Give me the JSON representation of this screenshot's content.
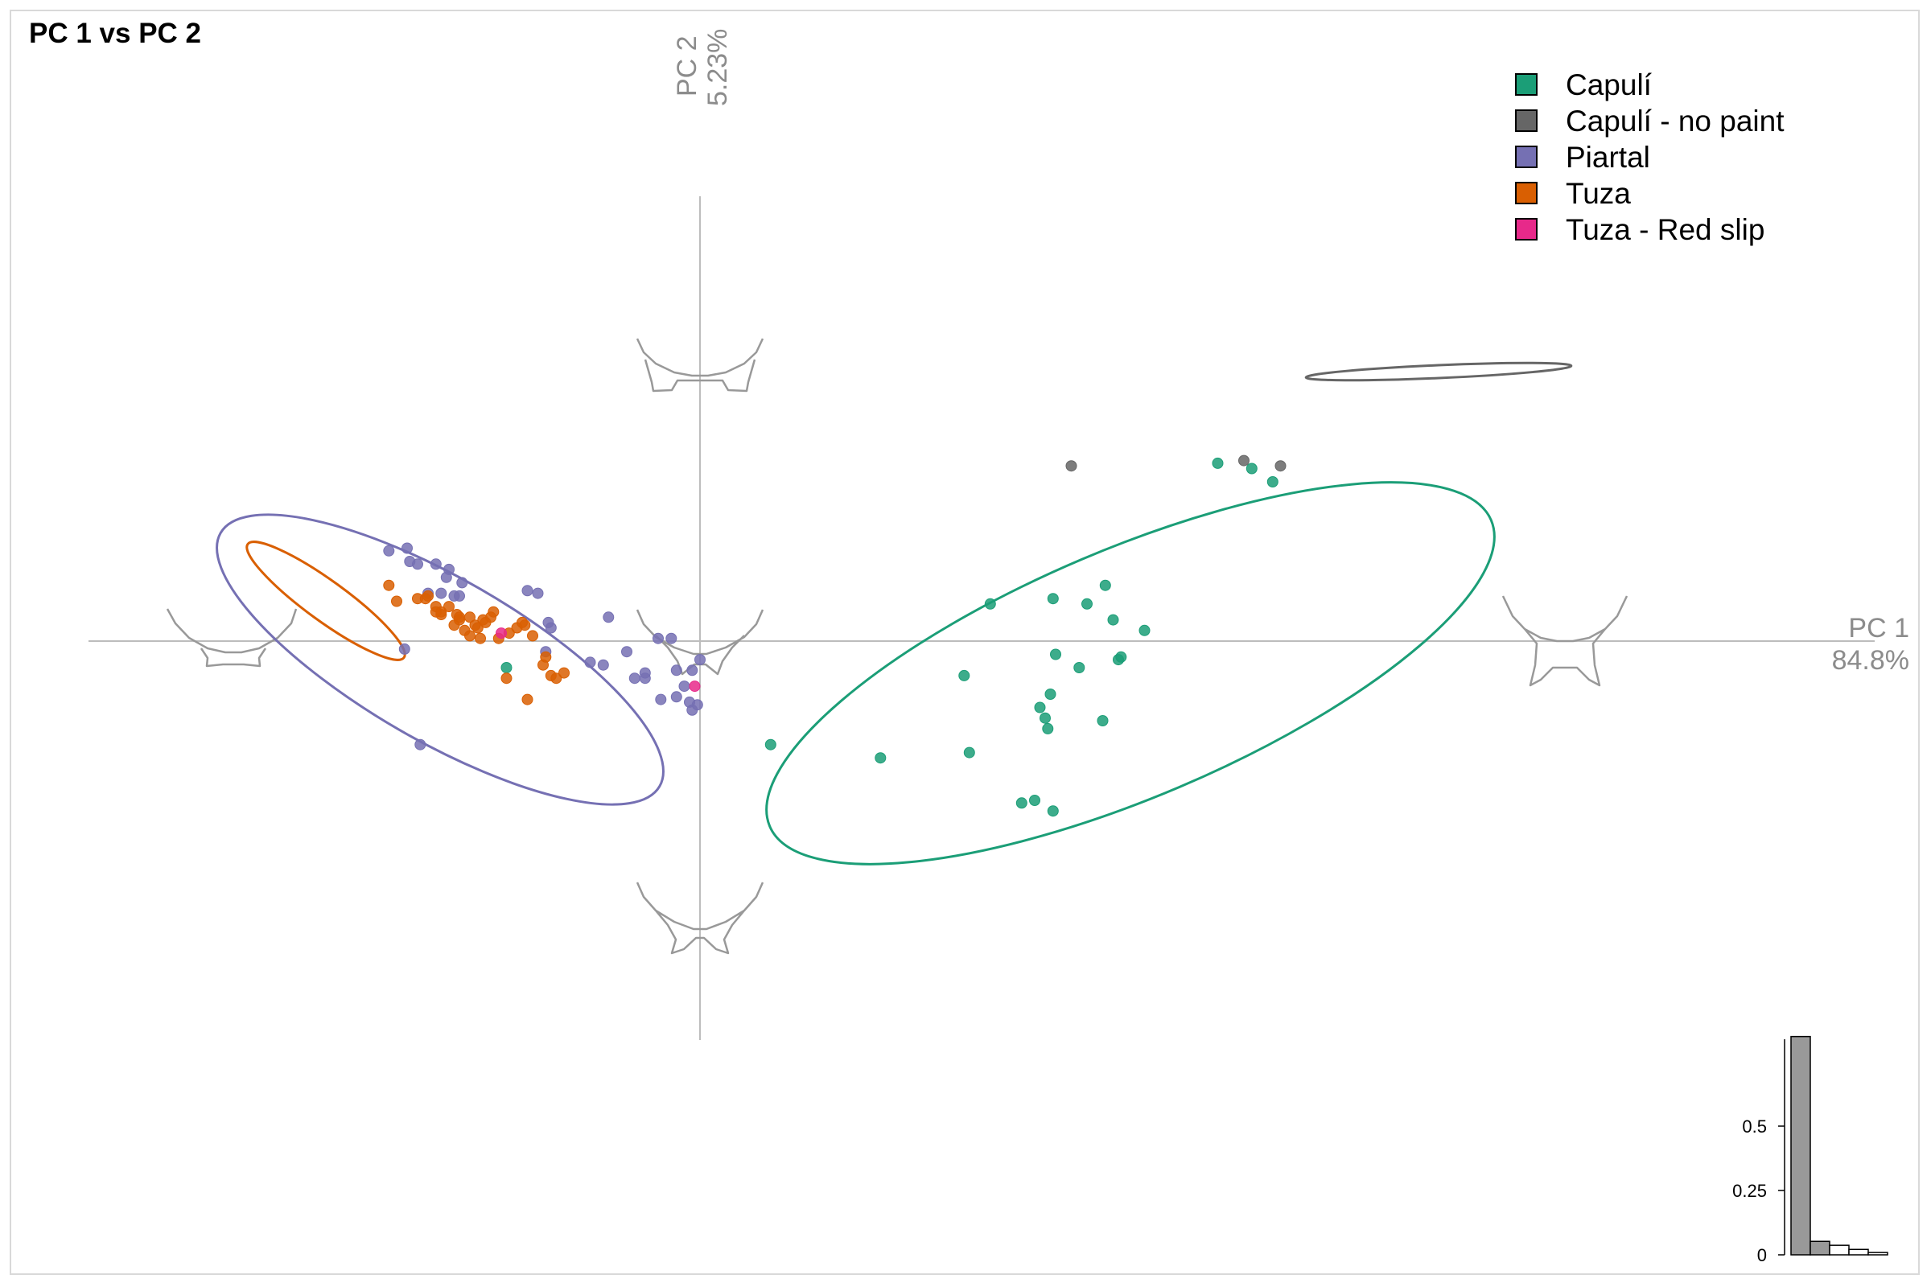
{
  "chart_data": {
    "type": "scatter",
    "title": "PC 1 vs PC 2",
    "xlabel": "PC 1",
    "xlabel_pct": "84.8%",
    "ylabel": "PC 2",
    "ylabel_pct": "5.23%",
    "xlim": [
      -0.15,
      0.27
    ],
    "ylim": [
      -0.12,
      0.13
    ],
    "legend_position": "top-right",
    "series": [
      {
        "name": "Capulí",
        "color": "#1b9e77",
        "points": [
          [
            0.027,
            -0.039
          ],
          [
            0.069,
            -0.044
          ],
          [
            0.101,
            -0.013
          ],
          [
            0.111,
            0.014
          ],
          [
            0.103,
            -0.042
          ],
          [
            0.13,
            -0.025
          ],
          [
            0.135,
            -0.064
          ],
          [
            0.123,
            -0.061
          ],
          [
            0.128,
            -0.06
          ],
          [
            0.134,
            -0.02
          ],
          [
            0.136,
            -0.005
          ],
          [
            0.132,
            -0.029
          ],
          [
            0.133,
            -0.033
          ],
          [
            0.135,
            0.016
          ],
          [
            0.145,
            -0.01
          ],
          [
            0.148,
            0.014
          ],
          [
            0.158,
            0.008
          ],
          [
            0.154,
            -0.03
          ],
          [
            0.155,
            0.021
          ],
          [
            0.16,
            -0.007
          ],
          [
            0.161,
            -0.006
          ],
          [
            0.17,
            0.004
          ],
          [
            0.198,
            0.067
          ],
          [
            0.211,
            0.065
          ],
          [
            0.219,
            0.06
          ],
          [
            -0.074,
            -0.01
          ]
        ]
      },
      {
        "name": "Capulí - no paint",
        "color": "#666666",
        "points": [
          [
            0.142,
            0.066
          ],
          [
            0.208,
            0.068
          ],
          [
            0.222,
            0.066
          ]
        ]
      },
      {
        "name": "Piartal",
        "color": "#7570b3",
        "points": [
          [
            -0.119,
            0.034
          ],
          [
            -0.112,
            0.035
          ],
          [
            -0.108,
            0.029
          ],
          [
            -0.111,
            0.03
          ],
          [
            -0.101,
            0.029
          ],
          [
            -0.096,
            0.027
          ],
          [
            -0.092,
            0.017
          ],
          [
            -0.099,
            0.018
          ],
          [
            -0.097,
            0.024
          ],
          [
            -0.104,
            0.018
          ],
          [
            -0.091,
            0.022
          ],
          [
            -0.094,
            0.017
          ],
          [
            -0.066,
            0.019
          ],
          [
            -0.062,
            0.018
          ],
          [
            -0.059,
            -0.004
          ],
          [
            -0.057,
            0.005
          ],
          [
            -0.058,
            0.007
          ],
          [
            -0.042,
            -0.008
          ],
          [
            -0.037,
            -0.009
          ],
          [
            -0.035,
            0.009
          ],
          [
            -0.028,
            -0.004
          ],
          [
            -0.025,
            -0.014
          ],
          [
            -0.021,
            -0.012
          ],
          [
            -0.016,
            0.001
          ],
          [
            -0.011,
            0.001
          ],
          [
            -0.009,
            -0.021
          ],
          [
            -0.006,
            -0.017
          ],
          [
            -0.004,
            -0.023
          ],
          [
            -0.003,
            -0.026
          ],
          [
            -0.021,
            -0.014
          ],
          [
            -0.015,
            -0.022
          ],
          [
            -0.003,
            -0.011
          ],
          [
            -0.001,
            -0.024
          ],
          [
            -0.009,
            -0.011
          ],
          [
            0.0,
            -0.007
          ],
          [
            -0.113,
            -0.003
          ],
          [
            -0.107,
            -0.039
          ]
        ]
      },
      {
        "name": "Tuza",
        "color": "#d95f02",
        "points": [
          [
            -0.119,
            0.021
          ],
          [
            -0.116,
            0.015
          ],
          [
            -0.108,
            0.016
          ],
          [
            -0.105,
            0.016
          ],
          [
            -0.104,
            0.017
          ],
          [
            -0.101,
            0.013
          ],
          [
            -0.099,
            0.01
          ],
          [
            -0.099,
            0.011
          ],
          [
            -0.093,
            0.01
          ],
          [
            -0.092,
            0.009
          ],
          [
            -0.092,
            0.008
          ],
          [
            -0.088,
            0.009
          ],
          [
            -0.09,
            0.004
          ],
          [
            -0.086,
            0.006
          ],
          [
            -0.085,
            0.005
          ],
          [
            -0.083,
            0.008
          ],
          [
            -0.082,
            0.007
          ],
          [
            -0.08,
            0.009
          ],
          [
            -0.079,
            0.011
          ],
          [
            -0.077,
            0.001
          ],
          [
            -0.073,
            0.003
          ],
          [
            -0.07,
            0.005
          ],
          [
            -0.068,
            0.007
          ],
          [
            -0.067,
            0.006
          ],
          [
            -0.064,
            0.002
          ],
          [
            -0.06,
            -0.009
          ],
          [
            -0.059,
            -0.006
          ],
          [
            -0.057,
            -0.013
          ],
          [
            -0.055,
            -0.014
          ],
          [
            -0.052,
            -0.012
          ],
          [
            -0.101,
            0.011
          ],
          [
            -0.096,
            0.013
          ],
          [
            -0.094,
            0.006
          ],
          [
            -0.088,
            0.002
          ],
          [
            -0.084,
            0.001
          ],
          [
            -0.074,
            -0.014
          ],
          [
            -0.066,
            -0.022
          ]
        ]
      },
      {
        "name": "Tuza - Red slip",
        "color": "#e7298a",
        "points": [
          [
            -0.076,
            0.003
          ],
          [
            -0.002,
            -0.017
          ]
        ]
      }
    ],
    "ellipses": [
      {
        "series": "Capulí",
        "color": "#1b9e77"
      },
      {
        "series": "Capulí - no paint",
        "color": "#666666"
      },
      {
        "series": "Piartal",
        "color": "#7570b3"
      },
      {
        "series": "Tuza",
        "color": "#d95f02"
      }
    ],
    "eigenvalue_barplot": {
      "type": "bar",
      "ticks": [
        "0",
        "0.25",
        "0.5"
      ],
      "values": [
        0.848,
        0.0523,
        0.037,
        0.021,
        0.009
      ],
      "highlighted": [
        0,
        1
      ]
    }
  }
}
